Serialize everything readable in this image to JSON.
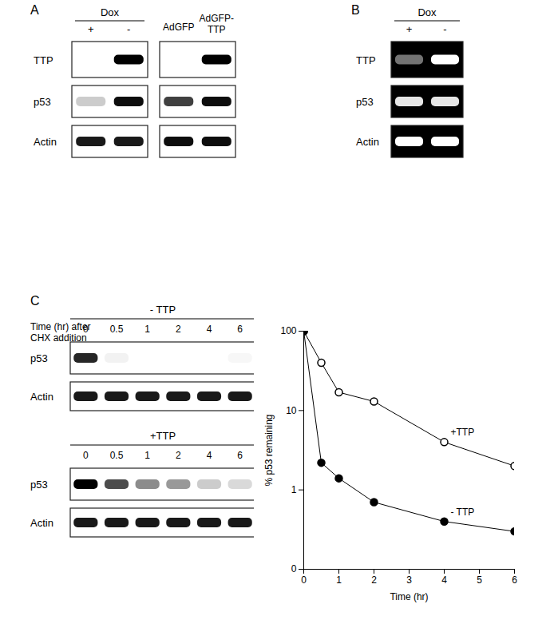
{
  "panels": {
    "A": {
      "label": "A",
      "blots": [
        {
          "header": {
            "title": "Dox",
            "lanes": [
              "+",
              "-"
            ]
          },
          "rows": [
            {
              "name": "TTP",
              "intensity": [
                0,
                1
              ]
            },
            {
              "name": "p53",
              "intensity": [
                0.2,
                0.95
              ]
            },
            {
              "name": "Actin",
              "intensity": [
                0.9,
                0.9
              ]
            }
          ]
        },
        {
          "header": {
            "lanes": [
              "AdGFP",
              "AdGFP-TTP"
            ]
          },
          "rows": [
            {
              "name": "TTP",
              "intensity": [
                0,
                1
              ]
            },
            {
              "name": "p53",
              "intensity": [
                0.75,
                0.95
              ]
            },
            {
              "name": "Actin",
              "intensity": [
                0.95,
                0.95
              ]
            }
          ]
        }
      ]
    },
    "B": {
      "label": "B",
      "blots": [
        {
          "header": {
            "title": "Dox",
            "lanes": [
              "+",
              "-"
            ]
          },
          "rows": [
            {
              "name": "TTP",
              "intensity": [
                0.45,
                1
              ]
            },
            {
              "name": "p53",
              "intensity": [
                0.9,
                0.9
              ]
            },
            {
              "name": "Actin",
              "intensity": [
                1,
                1
              ]
            }
          ]
        }
      ]
    },
    "C": {
      "label": "C",
      "time_label": "Time (hr) after CHX addition",
      "groups": [
        {
          "title": "- TTP",
          "times": [
            0,
            0.5,
            1,
            2,
            4,
            6
          ],
          "rows": [
            {
              "name": "p53",
              "intensity": [
                0.85,
                0.05,
                0,
                0,
                0,
                0.03
              ]
            },
            {
              "name": "Actin",
              "intensity": [
                0.9,
                0.9,
                0.9,
                0.9,
                0.9,
                0.9
              ]
            }
          ]
        },
        {
          "title": "+TTP",
          "times": [
            0,
            0.5,
            1,
            2,
            4,
            6
          ],
          "rows": [
            {
              "name": "p53",
              "intensity": [
                1,
                0.7,
                0.45,
                0.4,
                0.2,
                0.15
              ]
            },
            {
              "name": "Actin",
              "intensity": [
                0.9,
                0.9,
                0.9,
                0.9,
                0.9,
                0.9
              ]
            }
          ]
        }
      ]
    }
  },
  "chart_data": {
    "type": "line",
    "x_label": "Time (hr)",
    "y_label": "% p53 remaining",
    "x": [
      0,
      0.5,
      1,
      2,
      4,
      6
    ],
    "series": [
      {
        "name": "+TTP",
        "color": "#000000",
        "marker": "circle-open",
        "values": [
          100,
          40,
          17,
          13,
          4,
          2
        ]
      },
      {
        "name": "- TTP",
        "color": "#000000",
        "marker": "circle",
        "values": [
          100,
          2.2,
          1.4,
          0.7,
          0.4,
          0.3
        ]
      }
    ],
    "log": "y",
    "xlim": [
      0,
      6
    ],
    "xticks": [
      0,
      1,
      2,
      3,
      4,
      5,
      6
    ],
    "ylim": [
      0.1,
      100
    ],
    "yticks": [
      {
        "value": 0.1,
        "label": "0"
      },
      1,
      10,
      100
    ],
    "grid": false
  }
}
